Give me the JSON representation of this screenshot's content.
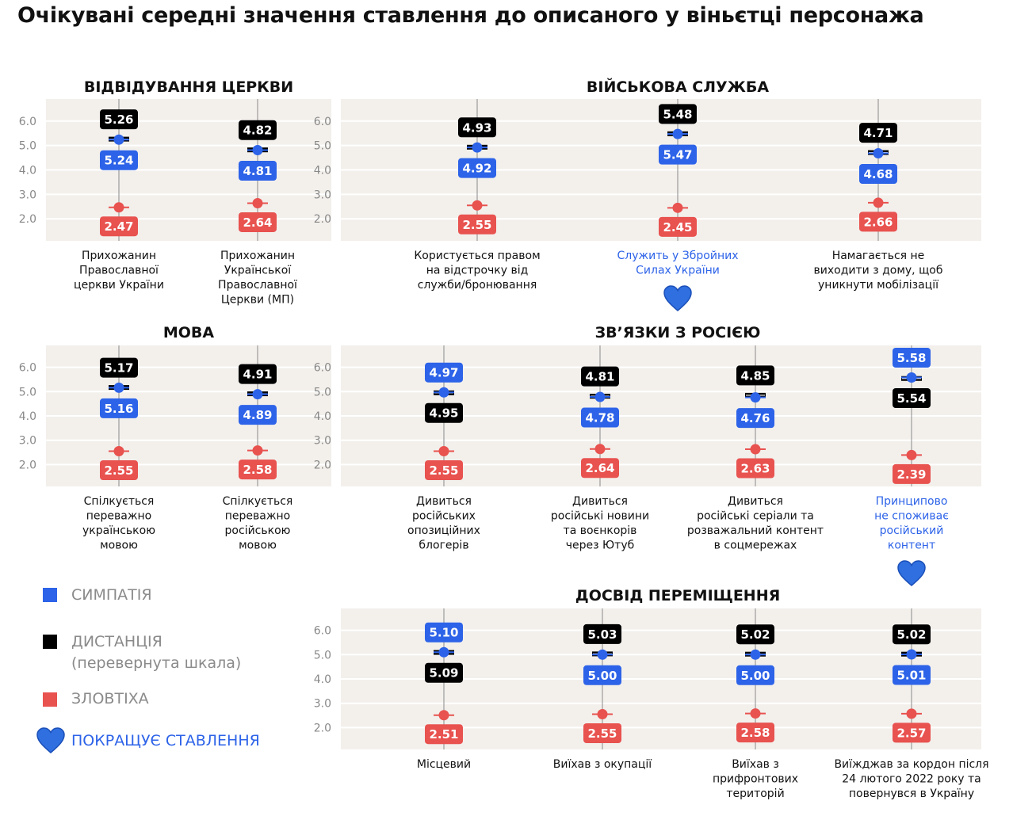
{
  "title": "Очікувані середні значення ставлення до описаного у віньєтці персонажа",
  "legend": {
    "sympathy": "СИМПАТІЯ",
    "distance": "ДИСТАНЦІЯ",
    "distance_note": "(перевернута шкала)",
    "malice": "ЗЛОВТІХА",
    "improves": "ПОКРАЩУЄ СТАВЛЕННЯ"
  },
  "colors": {
    "sympathy": "#2d63e8",
    "distance": "#000000",
    "malice": "#e8524f",
    "panel_bg": "#f3f0ec",
    "highlight_text": "#2d63e8",
    "heart": "#2f6fe0"
  },
  "axis": {
    "ylim": [
      1.1,
      6.9
    ],
    "ticks": [
      "6.0",
      "5.0",
      "4.0",
      "3.0",
      "2.0"
    ]
  },
  "chart_data": [
    {
      "type": "scatter",
      "title": "ВІДВІДУВАННЯ ЦЕРКВИ",
      "categories": [
        {
          "lines": [
            "Прихожанин",
            "Православної",
            "церкви України"
          ],
          "highlight": false
        },
        {
          "lines": [
            "Прихожанин",
            "Української",
            "Православної",
            "Церкви (МП)"
          ],
          "highlight": false
        }
      ],
      "series": [
        {
          "name": "СИМПАТІЯ",
          "values": [
            5.24,
            4.81
          ],
          "labels": [
            "5.24",
            "4.81"
          ]
        },
        {
          "name": "ДИСТАНЦІЯ",
          "values": [
            5.26,
            4.82
          ],
          "labels": [
            "5.26",
            "4.82"
          ]
        },
        {
          "name": "ЗЛОВТІХА",
          "values": [
            2.47,
            2.64
          ],
          "labels": [
            "2.47",
            "2.64"
          ]
        }
      ]
    },
    {
      "type": "scatter",
      "title": "ВІЙСЬКОВА СЛУЖБА",
      "categories": [
        {
          "lines": [
            "Користується правом",
            "на відстрочку від",
            "служби/бронювання"
          ],
          "highlight": false
        },
        {
          "lines": [
            "Служить у Збройних",
            "Силах України"
          ],
          "highlight": true
        },
        {
          "lines": [
            "Намагається не",
            "виходити з дому, щоб",
            "уникнути мобілізації"
          ],
          "highlight": false
        }
      ],
      "series": [
        {
          "name": "СИМПАТІЯ",
          "values": [
            4.92,
            5.47,
            4.68
          ],
          "labels": [
            "4.92",
            "5.47",
            "4.68"
          ]
        },
        {
          "name": "ДИСТАНЦІЯ",
          "values": [
            4.93,
            5.48,
            4.71
          ],
          "labels": [
            "4.93",
            "5.48",
            "4.71"
          ]
        },
        {
          "name": "ЗЛОВТІХА",
          "values": [
            2.55,
            2.45,
            2.66
          ],
          "labels": [
            "2.55",
            "2.45",
            "2.66"
          ]
        }
      ]
    },
    {
      "type": "scatter",
      "title": "МОВА",
      "categories": [
        {
          "lines": [
            "Спілкується",
            "переважно",
            "українською",
            "мовою"
          ],
          "highlight": false
        },
        {
          "lines": [
            "Спілкується",
            "переважно",
            "російською",
            "мовою"
          ],
          "highlight": false
        }
      ],
      "series": [
        {
          "name": "СИМПАТІЯ",
          "values": [
            5.16,
            4.89
          ],
          "labels": [
            "5.16",
            "4.89"
          ]
        },
        {
          "name": "ДИСТАНЦІЯ",
          "values": [
            5.17,
            4.91
          ],
          "labels": [
            "5.17",
            "4.91"
          ]
        },
        {
          "name": "ЗЛОВТІХА",
          "values": [
            2.55,
            2.58
          ],
          "labels": [
            "2.55",
            "2.58"
          ]
        }
      ]
    },
    {
      "type": "scatter",
      "title": "ЗВ’ЯЗКИ З РОСІЄЮ",
      "categories": [
        {
          "lines": [
            "Дивиться",
            "російських",
            "опозиційних",
            "блогерів"
          ],
          "highlight": false
        },
        {
          "lines": [
            "Дивиться",
            "російські новини",
            "та воєнкорів",
            "через Ютуб"
          ],
          "highlight": false
        },
        {
          "lines": [
            "Дивиться",
            "російські серіали та",
            "розважальний контент",
            "в соцмережах"
          ],
          "highlight": false
        },
        {
          "lines": [
            "Принципово",
            "не споживає",
            "російський",
            "контент"
          ],
          "highlight": true
        }
      ],
      "series": [
        {
          "name": "СИМПАТІЯ",
          "values": [
            4.97,
            4.78,
            4.76,
            5.58
          ],
          "labels": [
            "4.97",
            "4.78",
            "4.76",
            "5.58"
          ]
        },
        {
          "name": "ДИСТАНЦІЯ",
          "values": [
            4.95,
            4.81,
            4.85,
            5.54
          ],
          "labels": [
            "4.95",
            "4.81",
            "4.85",
            "5.54"
          ]
        },
        {
          "name": "ЗЛОВТІХА",
          "values": [
            2.55,
            2.64,
            2.63,
            2.39
          ],
          "labels": [
            "2.55",
            "2.64",
            "2.63",
            "2.39"
          ]
        }
      ]
    },
    {
      "type": "scatter",
      "title": "ДОСВІД ПЕРЕМІЩЕННЯ",
      "categories": [
        {
          "lines": [
            "Місцевий"
          ],
          "highlight": false
        },
        {
          "lines": [
            "Виїхав з окупації"
          ],
          "highlight": false
        },
        {
          "lines": [
            "Виїхав з",
            "прифронтових",
            "територій"
          ],
          "highlight": false
        },
        {
          "lines": [
            "Виїжджав за кордон після",
            "24 лютого 2022 року та",
            "повернувся в Україну"
          ],
          "highlight": false
        }
      ],
      "series": [
        {
          "name": "СИМПАТІЯ",
          "values": [
            5.1,
            5.0,
            5.0,
            5.01
          ],
          "labels": [
            "5.10",
            "5.00",
            "5.00",
            "5.01"
          ]
        },
        {
          "name": "ДИСТАНЦІЯ",
          "values": [
            5.09,
            5.03,
            5.02,
            5.02
          ],
          "labels": [
            "5.09",
            "5.03",
            "5.02",
            "5.02"
          ]
        },
        {
          "name": "ЗЛОВТІХА",
          "values": [
            2.51,
            2.55,
            2.58,
            2.57
          ],
          "labels": [
            "2.51",
            "2.55",
            "2.58",
            "2.57"
          ]
        }
      ]
    }
  ]
}
